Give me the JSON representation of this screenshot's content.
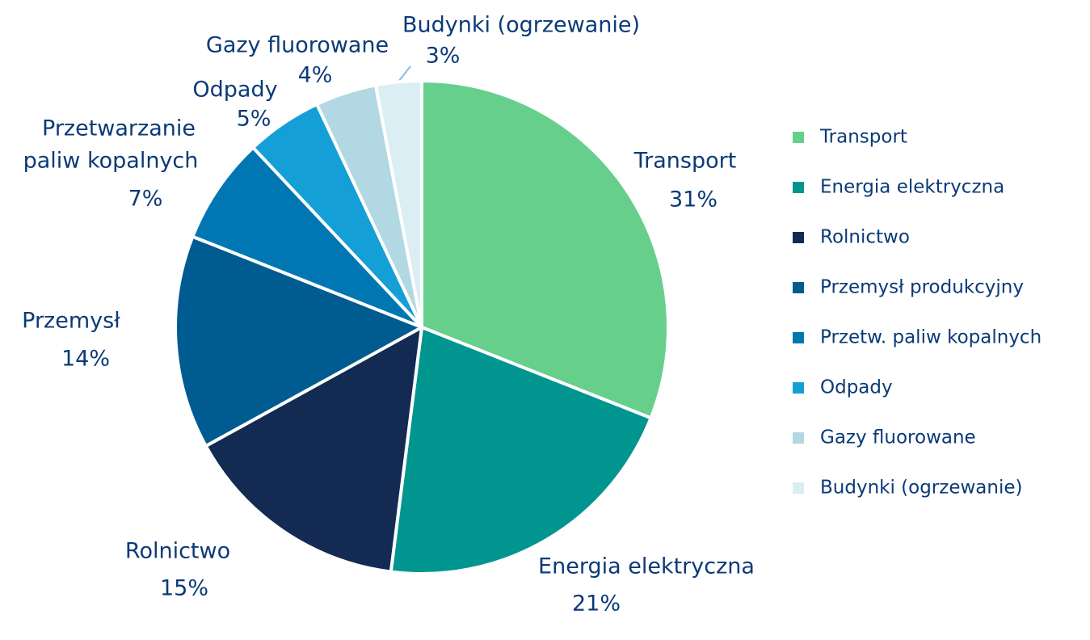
{
  "chart_data": {
    "type": "pie",
    "categories": [
      "Transport",
      "Energia elektryczna",
      "Rolnictwo",
      "Przemysł produkcyjny",
      "Przetw. paliw kopalnych",
      "Odpady",
      "Gazy fluorowane",
      "Budynki (ogrzewanie)"
    ],
    "slice_labels": [
      [
        "Transport"
      ],
      [
        "Energia elektryczna"
      ],
      [
        "Rolnictwo"
      ],
      [
        "Przemysł"
      ],
      [
        "Przetwarzanie",
        "paliw kopalnych"
      ],
      [
        "Odpady"
      ],
      [
        "Gazy fluorowane"
      ],
      [
        "Budynki (ogrzewanie)"
      ]
    ],
    "values": [
      31,
      21,
      15,
      14,
      7,
      5,
      4,
      3
    ],
    "value_labels": [
      "31%",
      "21%",
      "15%",
      "14%",
      "7%",
      "5%",
      "4%",
      "3%"
    ],
    "colors": [
      "#66cf8c",
      "#00968f",
      "#132b52",
      "#005b91",
      "#0077b3",
      "#149fd6",
      "#b2d8e3",
      "#daeef3"
    ],
    "legend": "right"
  }
}
